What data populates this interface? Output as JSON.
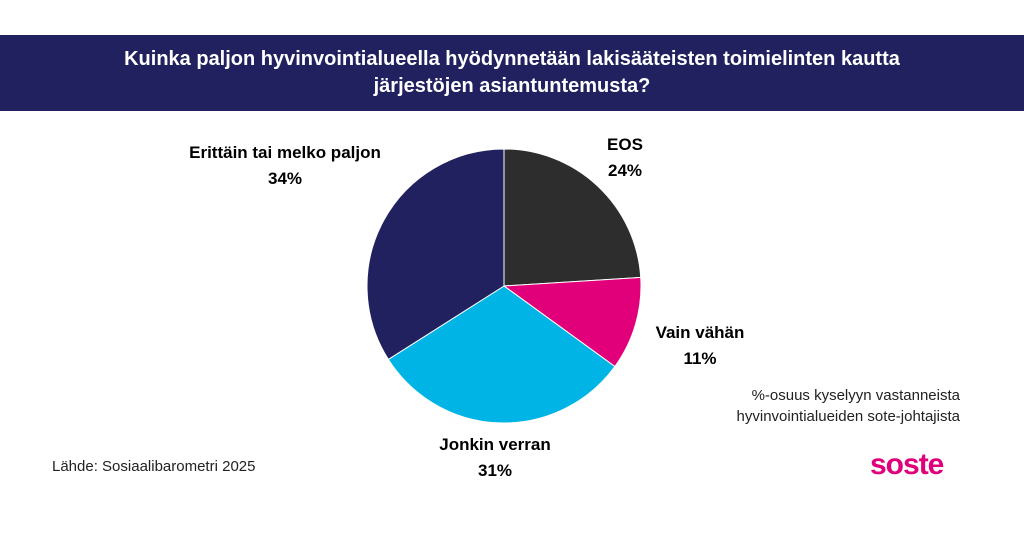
{
  "title_line1": "Kuinka paljon hyvinvointialueella hyödynnetään lakisääteisten toimielinten kautta",
  "title_line2": "järjestöjen asiantuntemusta?",
  "note_line1": "%-osuus kyselyyn vastanneista",
  "note_line2": "hyvinvointialueiden sote-johtajista",
  "source": "Lähde: Sosiaalibarometri 2025",
  "logo": "soste",
  "colors": {
    "title_band": "#21215f",
    "brand": "#e0007a"
  },
  "chart_data": {
    "type": "pie",
    "title": "Kuinka paljon hyvinvointialueella hyödynnetään lakisääteisten toimielinten kautta järjestöjen asiantuntemusta?",
    "start": "12 o'clock, clockwise",
    "slices": [
      {
        "label": "EOS",
        "value": 24,
        "value_label": "24%",
        "color": "#2d2d2d"
      },
      {
        "label": "Vain vähän",
        "value": 11,
        "value_label": "11%",
        "color": "#e2007a"
      },
      {
        "label": "Jonkin verran",
        "value": 31,
        "value_label": "31%",
        "color": "#00b4e6"
      },
      {
        "label": "Erittäin tai melko paljon",
        "value": 34,
        "value_label": "34%",
        "color": "#21215f"
      }
    ]
  }
}
